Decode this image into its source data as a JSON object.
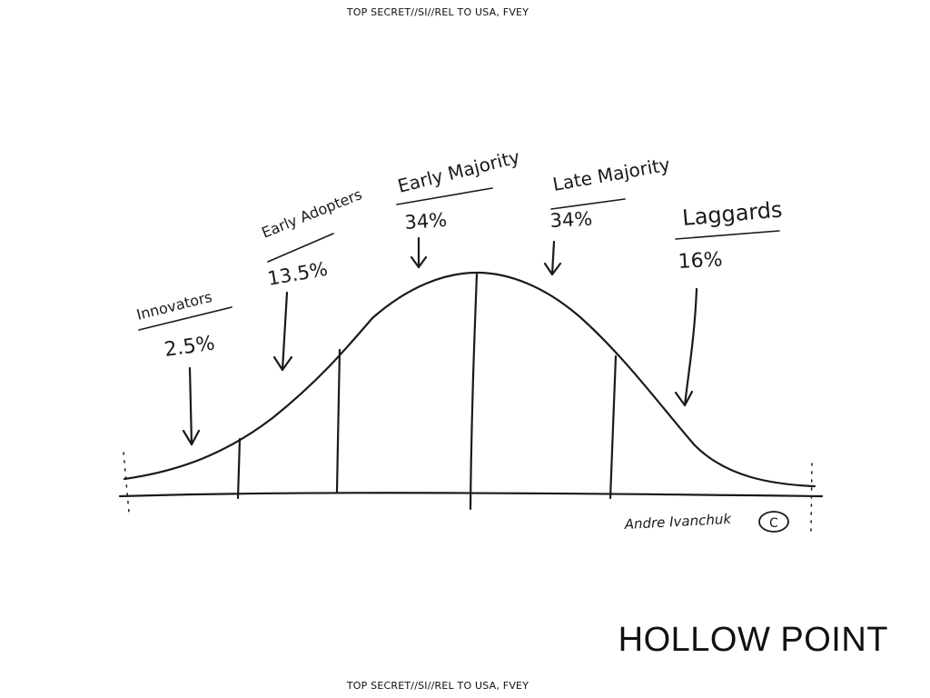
{
  "classification_banner": "TOP SECRET//SI//REL TO USA, FVEY",
  "codename": "HOLLOW POINT",
  "signature": "Andre Ivanchuk",
  "copyright_mark": "C",
  "segments": [
    {
      "name": "Innovators",
      "percent": "2.5%"
    },
    {
      "name": "Early Adopters",
      "percent": "13.5%"
    },
    {
      "name": "Early Majority",
      "percent": "34%"
    },
    {
      "name": "Late Majority",
      "percent": "34%"
    },
    {
      "name": "Laggards",
      "percent": "16%"
    }
  ],
  "colors": {
    "ink": "#1a1a1a",
    "background": "#ffffff"
  }
}
